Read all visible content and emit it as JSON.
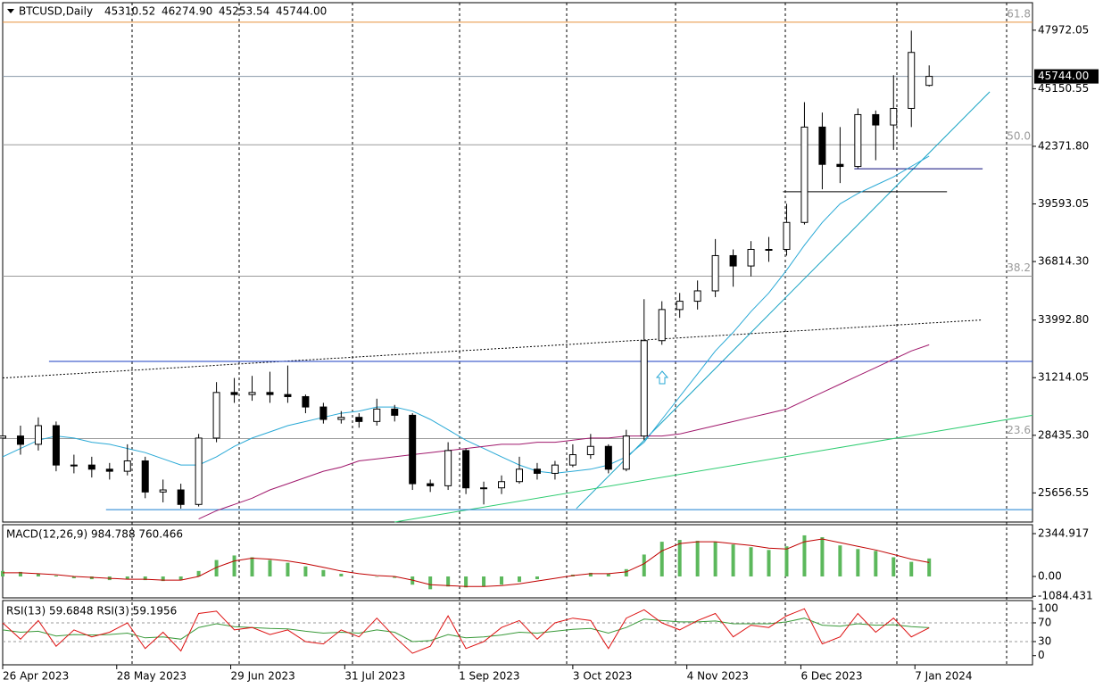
{
  "chart_data": [
    {
      "type": "candlestick",
      "title": "BTCUSD,Daily",
      "header_values": [
        "45310.52",
        "46274.90",
        "45253.54",
        "45744.00"
      ],
      "x": [
        0,
        5,
        10,
        15,
        20,
        25,
        30,
        35,
        40,
        45,
        50,
        55,
        60,
        65,
        70,
        75,
        80,
        85,
        90,
        95,
        100,
        105,
        110,
        115,
        120,
        125,
        130,
        135,
        140,
        145,
        150,
        155,
        160,
        165,
        170,
        175,
        180,
        185,
        190,
        195,
        200,
        205,
        210,
        215,
        220,
        225,
        230,
        235,
        240,
        245,
        250,
        255,
        260
      ],
      "open": [
        28300,
        28400,
        28000,
        28900,
        27000,
        27000,
        26800,
        26700,
        27200,
        25700,
        25800,
        25100,
        28300,
        30500,
        30400,
        30500,
        30400,
        30300,
        29800,
        29200,
        29300,
        29100,
        29700,
        29400,
        26100,
        26000,
        27700,
        25900,
        25900,
        26200,
        26800,
        26600,
        27000,
        27500,
        27900,
        26800,
        28400,
        33000,
        34500,
        34900,
        35400,
        37100,
        36600,
        37400,
        37400,
        38700,
        43300,
        41500,
        41400,
        43900,
        43400,
        44200,
        45310.52
      ],
      "high": [
        29000,
        28900,
        29300,
        29100,
        27500,
        27400,
        27100,
        28000,
        27400,
        26300,
        26100,
        28500,
        31000,
        31200,
        31300,
        31500,
        31800,
        30400,
        30000,
        29600,
        29500,
        30200,
        29900,
        29500,
        26300,
        28100,
        27800,
        26200,
        26500,
        27400,
        27100,
        27200,
        28000,
        28500,
        28000,
        28700,
        35000,
        34900,
        35300,
        35900,
        37900,
        37400,
        37800,
        38000,
        39600,
        44500,
        44000,
        43300,
        44200,
        44100,
        45800,
        47950,
        46274.9
      ],
      "low": [
        27600,
        27500,
        27700,
        26700,
        26600,
        26400,
        26300,
        26500,
        25400,
        25200,
        24900,
        25000,
        28100,
        30000,
        30100,
        30000,
        30000,
        29500,
        29000,
        29000,
        28800,
        28900,
        29100,
        25800,
        25700,
        25800,
        25600,
        25100,
        25600,
        26100,
        26300,
        26300,
        26900,
        27300,
        26600,
        26700,
        28200,
        32800,
        34100,
        34500,
        35100,
        35600,
        36100,
        36800,
        37100,
        38600,
        40300,
        40600,
        41300,
        41700,
        42200,
        43300,
        45253.54
      ],
      "close": [
        28400,
        28000,
        28900,
        27000,
        27000,
        26800,
        26700,
        27200,
        25700,
        25800,
        25100,
        28300,
        30500,
        30400,
        30500,
        30400,
        30300,
        29800,
        29200,
        29300,
        29100,
        29700,
        29400,
        26100,
        26000,
        27700,
        25900,
        25900,
        26200,
        26800,
        26600,
        27000,
        27500,
        27900,
        26800,
        28400,
        33000,
        34500,
        34900,
        35400,
        37100,
        36600,
        37400,
        37400,
        38700,
        43300,
        41500,
        41400,
        43900,
        43400,
        44200,
        46900,
        45744
      ],
      "up_color": "#ffffff",
      "down_color": "#000000",
      "series": [
        {
          "color": "#2aa9d6",
          "values": [
            27400,
            27800,
            28200,
            28400,
            28300,
            28100,
            28000,
            27800,
            27600,
            27300,
            27000,
            27000,
            27400,
            27900,
            28300,
            28600,
            28900,
            29100,
            29300,
            29500,
            29600,
            29800,
            29800,
            29600,
            29200,
            28700,
            28200,
            27800,
            27400,
            27000,
            26700,
            26600,
            26700,
            26800,
            27000,
            27400,
            28100,
            29200,
            30300,
            31400,
            32500,
            33400,
            34400,
            35300,
            36400,
            37600,
            38700,
            39600,
            40100,
            40500,
            40900,
            41400,
            41900
          ]
        },
        {
          "color": "#a0186c",
          "values": [
            null,
            null,
            null,
            null,
            null,
            null,
            null,
            null,
            null,
            null,
            null,
            24400,
            24800,
            25100,
            25400,
            25800,
            26100,
            26400,
            26700,
            26900,
            27200,
            27300,
            27400,
            27500,
            27600,
            27700,
            27800,
            27900,
            28000,
            28000,
            28100,
            28100,
            28200,
            28300,
            28300,
            28400,
            28400,
            28400,
            28500,
            28700,
            28900,
            29100,
            29300,
            29500,
            29700,
            30100,
            30500,
            30900,
            31300,
            31700,
            32100,
            32500,
            32800
          ]
        }
      ],
      "lines": [
        {
          "color": "#17a3c4",
          "dash": false,
          "points": [
            [
              161,
              24900
            ],
            [
              277,
              45000
            ]
          ]
        },
        {
          "color": "#2ecc71",
          "dash": false,
          "points": [
            [
              110,
              24250
            ],
            [
              289,
              29400
            ]
          ]
        },
        {
          "color": "#000000",
          "dash": true,
          "points": [
            [
              0,
              31200
            ],
            [
              275,
              34000
            ]
          ]
        },
        {
          "color": "#1a3cc0",
          "dash": false,
          "points": [
            [
              13,
              32000
            ],
            [
              289,
              32000
            ]
          ]
        },
        {
          "color": "#1a7fd0",
          "dash": false,
          "points": [
            [
              29,
              24850
            ],
            [
              289,
              24850
            ]
          ]
        },
        {
          "color": "#0a0a7a",
          "dash": false,
          "points": [
            [
              239,
              41290
            ],
            [
              275,
              41290
            ]
          ]
        },
        {
          "color": "#000000",
          "dash": false,
          "points": [
            [
              219,
              40180
            ],
            [
              265,
              40180
            ]
          ]
        }
      ],
      "fib_levels": [
        {
          "level": "61.8",
          "price": 48357,
          "color": "#e8913a"
        },
        {
          "level": "50.0",
          "price": 42448,
          "color": "#9a9a9a"
        },
        {
          "level": "38.2",
          "price": 36111,
          "color": "#9a9a9a"
        },
        {
          "level": "23.6",
          "price": 28275,
          "color": "#9a9a9a"
        }
      ],
      "current_price": {
        "value": 45744,
        "label": "45744.00"
      },
      "xlim": [
        0,
        289
      ],
      "xticks": [
        {
          "value": 0,
          "label": "26 Apr 2023"
        },
        {
          "value": 32,
          "label": "28 May 2023"
        },
        {
          "value": 64,
          "label": "29 Jun 2023"
        },
        {
          "value": 96,
          "label": "31 Jul 2023"
        },
        {
          "value": 128,
          "label": "1 Sep 2023"
        },
        {
          "value": 160,
          "label": "3 Oct 2023"
        },
        {
          "value": 192,
          "label": "4 Nov 2023"
        },
        {
          "value": 224,
          "label": "6 Dec 2023"
        },
        {
          "value": 256,
          "label": "7 Jan 2024"
        }
      ],
      "ylim": [
        24252,
        49299
      ],
      "yticks": [
        47972.05,
        45150.55,
        {
          "value": 42371.8,
          "label": "42371.80"
        },
        39593.05,
        {
          "value": 36814.3,
          "label": "36814.30"
        },
        {
          "value": 33992.8,
          "label": "33992.80"
        },
        31214.05,
        {
          "value": 28435.3,
          "label": "28435.30"
        },
        25656.55
      ]
    },
    {
      "type": "macd",
      "title": "MACD(12,26,9) 984.788 760.466",
      "histogram": {
        "color": "#5cb85c",
        "values": [
          300,
          250,
          150,
          50,
          -100,
          -150,
          -200,
          -150,
          -200,
          -250,
          -200,
          300,
          900,
          1150,
          1050,
          900,
          750,
          550,
          350,
          150,
          0,
          -20,
          -80,
          -450,
          -700,
          -550,
          -600,
          -550,
          -450,
          -300,
          -150,
          0,
          100,
          200,
          150,
          400,
          1200,
          1900,
          2000,
          1950,
          1900,
          1750,
          1600,
          1450,
          1650,
          2250,
          2150,
          1700,
          1500,
          1400,
          1050,
          800,
          985
        ]
      },
      "signal": {
        "color": "#c00000",
        "values": [
          200,
          200,
          150,
          100,
          0,
          -50,
          -100,
          -150,
          -150,
          -200,
          -200,
          0,
          500,
          850,
          1000,
          950,
          850,
          700,
          500,
          300,
          150,
          50,
          0,
          -200,
          -450,
          -500,
          -550,
          -550,
          -500,
          -400,
          -250,
          -100,
          50,
          150,
          150,
          250,
          700,
          1400,
          1800,
          1900,
          1900,
          1800,
          1700,
          1550,
          1500,
          1900,
          2050,
          1850,
          1650,
          1450,
          1200,
          950,
          760
        ]
      },
      "ylim": [
        -1172,
        2833
      ],
      "yticks": [
        2344.917,
        {
          "value": 0,
          "label": "0.00"
        },
        -1084.431
      ]
    },
    {
      "type": "rsi",
      "title": "RSI(13) 59.6848  RSI(3) 59.1956",
      "series": [
        {
          "color": "#3a9a3a",
          "values": [
            55,
            50,
            52,
            42,
            45,
            44,
            45,
            48,
            38,
            40,
            35,
            60,
            68,
            62,
            60,
            58,
            57,
            52,
            48,
            50,
            48,
            55,
            50,
            30,
            32,
            45,
            38,
            40,
            44,
            50,
            48,
            52,
            56,
            58,
            48,
            60,
            78,
            75,
            72,
            72,
            74,
            68,
            68,
            68,
            72,
            80,
            65,
            63,
            68,
            65,
            66,
            62,
            59.7
          ]
        },
        {
          "color": "#dd1111",
          "values": [
            70,
            35,
            75,
            20,
            55,
            40,
            50,
            70,
            15,
            50,
            10,
            90,
            95,
            55,
            60,
            45,
            55,
            30,
            25,
            55,
            40,
            80,
            40,
            5,
            20,
            85,
            15,
            30,
            60,
            75,
            35,
            70,
            80,
            75,
            15,
            80,
            98,
            70,
            55,
            75,
            90,
            40,
            65,
            60,
            85,
            100,
            25,
            40,
            90,
            50,
            80,
            40,
            59.2
          ]
        }
      ],
      "ylim": [
        -19.6,
        117.6
      ],
      "yticks": [
        100,
        70,
        30,
        0
      ]
    }
  ]
}
